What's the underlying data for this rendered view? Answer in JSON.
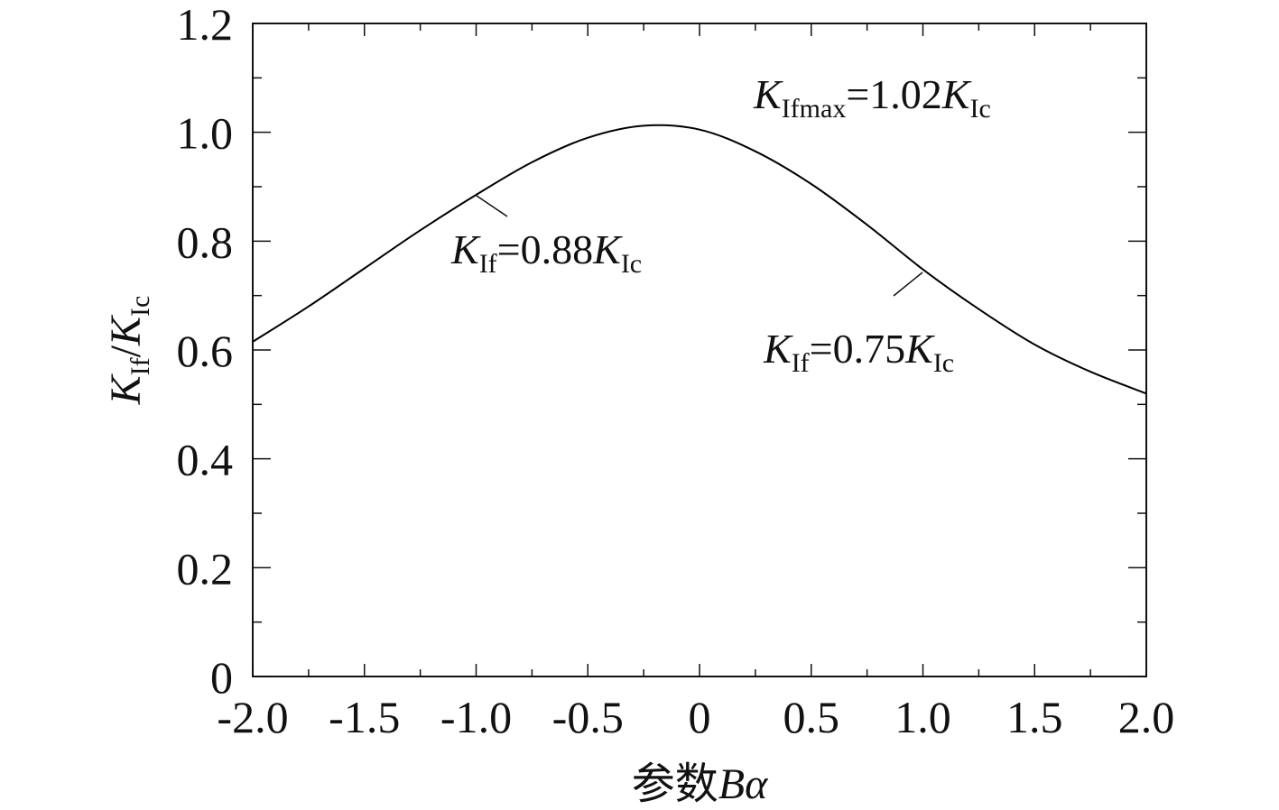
{
  "chart_data": {
    "type": "line",
    "xlabel": "参数Bα",
    "xlabel_parts": {
      "prefix": "参数",
      "italic": "Bα"
    },
    "ylabel": "K_If/K_Ic",
    "ylabel_parts": {
      "k1": "K",
      "sub1": "If",
      "sep": "/",
      "k2": "K",
      "sub2": "Ic"
    },
    "xlim": [
      -2.0,
      2.0
    ],
    "ylim": [
      0,
      1.2
    ],
    "x_ticks": [
      -2.0,
      -1.5,
      -1.0,
      -0.5,
      0,
      0.5,
      1.0,
      1.5,
      2.0
    ],
    "x_tick_labels": [
      "-2.0",
      "-1.5",
      "-1.0",
      "-0.5",
      "0",
      "0.5",
      "1.0",
      "1.5",
      "2.0"
    ],
    "y_ticks": [
      0,
      0.2,
      0.4,
      0.6,
      0.8,
      1.0,
      1.2
    ],
    "y_tick_labels": [
      "0",
      "0.2",
      "0.4",
      "0.6",
      "0.8",
      "1.0",
      "1.2"
    ],
    "grid": false,
    "series": [
      {
        "x": [
          -2.0,
          -1.75,
          -1.5,
          -1.25,
          -1.0,
          -0.75,
          -0.5,
          -0.25,
          0.0,
          0.25,
          0.5,
          0.75,
          1.0,
          1.25,
          1.5,
          1.75,
          2.0
        ],
        "values": [
          0.615,
          0.68,
          0.75,
          0.82,
          0.885,
          0.945,
          0.99,
          1.012,
          1.005,
          0.965,
          0.905,
          0.83,
          0.748,
          0.675,
          0.61,
          0.56,
          0.52
        ],
        "color": "#000000"
      }
    ],
    "annotations": [
      {
        "k": "K",
        "sub": "Ifmax",
        "text": "=1.02",
        "k2": "K",
        "sub2": "Ic"
      },
      {
        "k": "K",
        "sub": "If",
        "text": "=0.88",
        "k2": "K",
        "sub2": "Ic"
      },
      {
        "k": "K",
        "sub": "If",
        "text": "=0.75",
        "k2": "K",
        "sub2": "Ic"
      }
    ]
  }
}
